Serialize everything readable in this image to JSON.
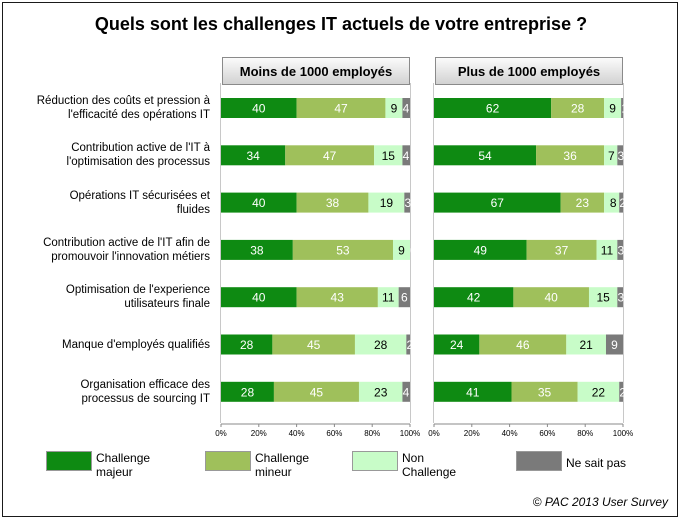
{
  "chart_data": {
    "type": "bar",
    "stacked": true,
    "orientation": "horizontal",
    "title": "Quels sont les challenges IT actuels de votre entreprise ?",
    "categories": [
      [
        "Réduction des coûts et pression à",
        "l'efficacité des opérations IT"
      ],
      [
        "Contribution active de l'IT à",
        "l'optimisation des processus"
      ],
      [
        "Opérations IT sécurisées et",
        "fluides"
      ],
      [
        "Contribution active de l'IT afin de",
        "promouvoir l'innovation métiers"
      ],
      [
        "Optimisation de l'experience",
        "utilisateurs finale"
      ],
      [
        "Manque d'employés qualifiés"
      ],
      [
        "Organisation efficace des",
        "processus de sourcing IT"
      ]
    ],
    "panels": [
      {
        "name": "Moins de 1000 employés",
        "series": [
          {
            "name": "Challenge majeur",
            "values": [
              40,
              34,
              40,
              38,
              40,
              28,
              28
            ]
          },
          {
            "name": "Challenge mineur",
            "values": [
              47,
              47,
              38,
              53,
              43,
              45,
              45
            ]
          },
          {
            "name": "Non Challenge",
            "values": [
              9,
              15,
              19,
              9,
              11,
              28,
              23
            ]
          },
          {
            "name": "Ne sait pas",
            "values": [
              4,
              4,
              3,
              0,
              6,
              2,
              4
            ]
          }
        ]
      },
      {
        "name": "Plus de 1000 employés",
        "series": [
          {
            "name": "Challenge majeur",
            "values": [
              62,
              54,
              67,
              49,
              42,
              24,
              41
            ]
          },
          {
            "name": "Challenge mineur",
            "values": [
              28,
              36,
              23,
              37,
              40,
              46,
              35
            ]
          },
          {
            "name": "Non Challenge",
            "values": [
              9,
              7,
              8,
              11,
              15,
              21,
              22
            ]
          },
          {
            "name": "Ne sait pas",
            "values": [
              1,
              3,
              2,
              3,
              3,
              9,
              2
            ]
          }
        ]
      }
    ],
    "xlim": [
      0,
      100
    ],
    "ticks": [
      "0%",
      "20%",
      "40%",
      "60%",
      "80%",
      "100%"
    ],
    "legend": [
      {
        "label": [
          "Challenge",
          "majeur"
        ],
        "color": "#0e8a12"
      },
      {
        "label": [
          "Challenge",
          "mineur"
        ],
        "color": "#9fc05b"
      },
      {
        "label": [
          "Non",
          "Challenge"
        ],
        "color": "#c8fcc8"
      },
      {
        "label": [
          "Ne sait pas"
        ],
        "color": "#7a7a7a"
      }
    ],
    "legend_position": "bottom",
    "grid": false
  },
  "colors": {
    "majeur": "#0e8a12",
    "mineur": "#9fc05b",
    "non": "#c8fcc8",
    "nsp": "#7a7a7a"
  },
  "source": "© PAC 2013 User Survey"
}
